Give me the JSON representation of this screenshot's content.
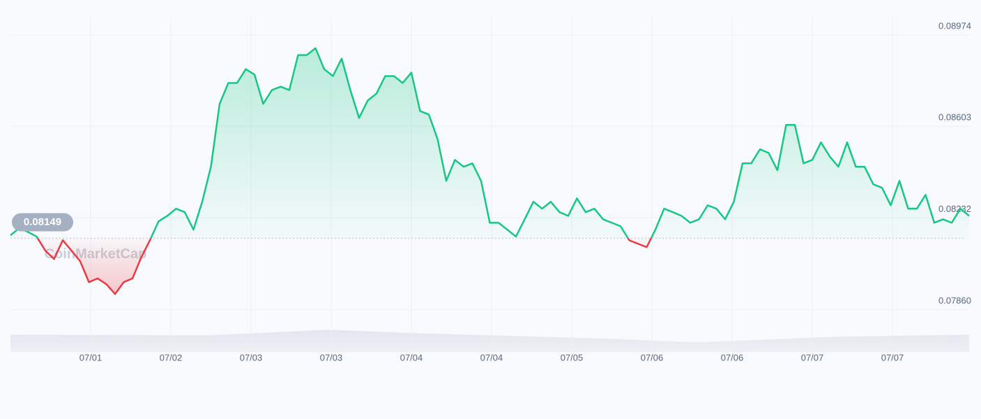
{
  "chart_data": {
    "type": "line",
    "values": [
      0.08161,
      0.0819,
      0.08175,
      0.08156,
      0.08099,
      0.08065,
      0.08141,
      0.08099,
      0.08056,
      0.07971,
      0.07986,
      0.07963,
      0.07923,
      0.07971,
      0.07986,
      0.08071,
      0.08141,
      0.08218,
      0.0824,
      0.08269,
      0.08255,
      0.08184,
      0.08297,
      0.08439,
      0.08694,
      0.08779,
      0.08779,
      0.08835,
      0.08813,
      0.08694,
      0.0875,
      0.08764,
      0.0875,
      0.08892,
      0.08892,
      0.0892,
      0.08835,
      0.08807,
      0.08878,
      0.0875,
      0.08637,
      0.08708,
      0.08736,
      0.08807,
      0.08807,
      0.08779,
      0.08821,
      0.08665,
      0.08651,
      0.08552,
      0.08382,
      0.08467,
      0.08439,
      0.08453,
      0.08382,
      0.08212,
      0.08212,
      0.08184,
      0.08156,
      0.08226,
      0.08297,
      0.08269,
      0.08297,
      0.08255,
      0.0824,
      0.08311,
      0.08255,
      0.08269,
      0.08226,
      0.08212,
      0.08198,
      0.08141,
      0.08127,
      0.08113,
      0.08184,
      0.08269,
      0.08255,
      0.0824,
      0.08212,
      0.08226,
      0.08283,
      0.08269,
      0.08226,
      0.08297,
      0.08453,
      0.08453,
      0.0851,
      0.08495,
      0.08425,
      0.08609,
      0.08609,
      0.08453,
      0.08467,
      0.08538,
      0.08481,
      0.08439,
      0.08538,
      0.08439,
      0.08439,
      0.08368,
      0.08354,
      0.08283,
      0.08382,
      0.08269,
      0.08269,
      0.08325,
      0.08212,
      0.08226,
      0.08212,
      0.08269,
      0.0824
    ],
    "baseline": 0.08149,
    "up_color": "#16c784",
    "down_color": "#ea3943",
    "ylim": [
      0.0786,
      0.08974
    ],
    "yticks": [
      {
        "value": 0.0786,
        "label": "0.07860"
      },
      0.08232,
      0.08603,
      0.08974
    ],
    "x_tick_labels": [
      "07/01",
      "07/02",
      "07/03",
      "07/03",
      "07/04",
      "07/04",
      "07/05",
      "07/06",
      "07/06",
      "07/07",
      "07/07"
    ],
    "watermark": "CoinMarketCap",
    "grid": true
  }
}
